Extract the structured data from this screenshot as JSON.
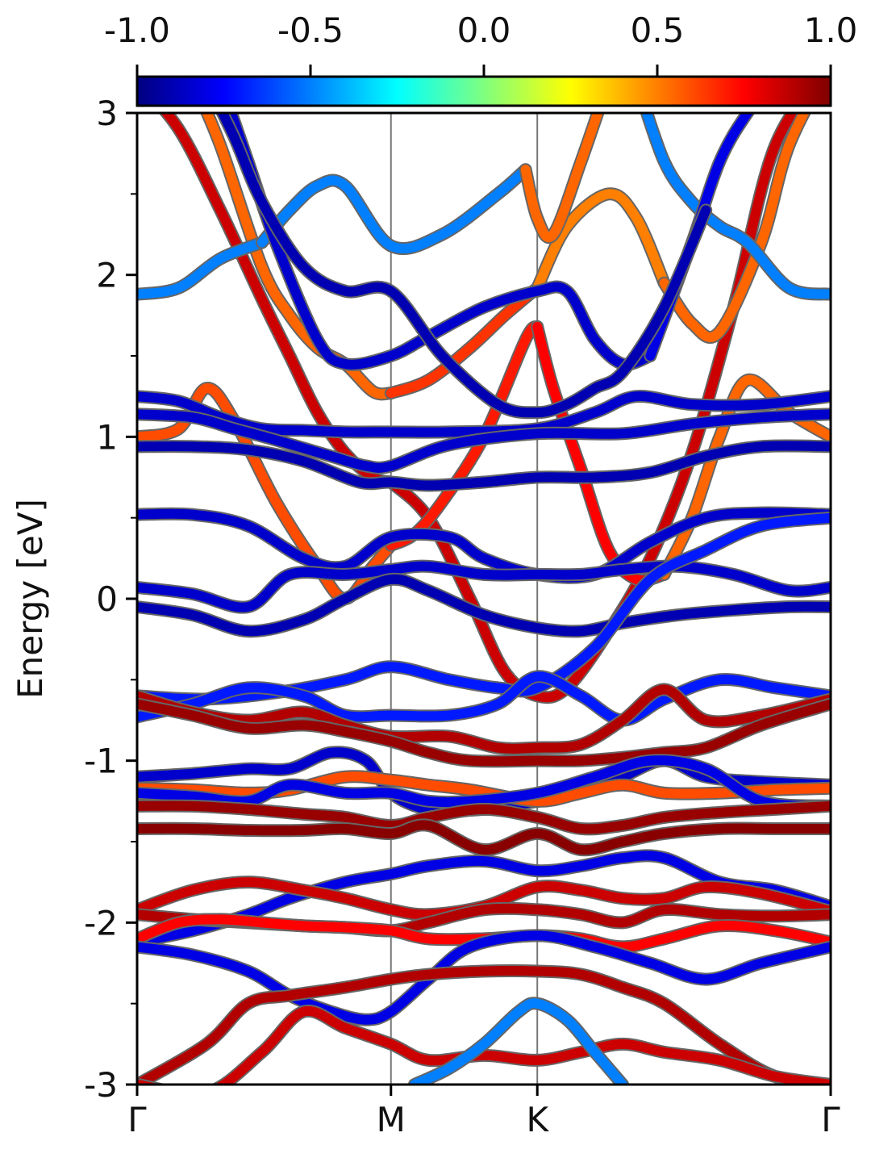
{
  "chart_data": {
    "type": "line",
    "title": "",
    "xlabel": "",
    "ylabel": "Energy [eV]",
    "ylim": [
      -3,
      3
    ],
    "xlim": [
      0,
      1
    ],
    "grid": false,
    "y_ticks": [
      3,
      2,
      1,
      0,
      -1,
      -2,
      -3
    ],
    "y_tick_labels": [
      "3",
      "2",
      "1",
      "0",
      "-1",
      "-2",
      "-3"
    ],
    "k_points": [
      {
        "label": "Γ",
        "x": 0.0
      },
      {
        "label": "M",
        "x": 0.366
      },
      {
        "label": "K",
        "x": 0.577
      },
      {
        "label": "Γ",
        "x": 1.0
      }
    ],
    "colorbar": {
      "colormap": "jet",
      "range": [
        -1.0,
        1.0
      ],
      "placement": "top",
      "tick_values": [
        -1.0,
        -0.5,
        0.0,
        0.5,
        1.0
      ],
      "tick_labels": [
        "-1.0",
        "-0.5",
        "0.0",
        "0.5",
        "1.0"
      ],
      "colors": [
        "#00007f",
        "#0000ff",
        "#007fff",
        "#00ffff",
        "#7fff7f",
        "#ffff00",
        "#ff7f00",
        "#ff0000",
        "#7f0000"
      ]
    },
    "series": [
      {
        "x": [
          0,
          0.06,
          0.12,
          0.18,
          0.22,
          0.26,
          0.3,
          0.34,
          0.366
        ],
        "y": [
          3.2,
          2.9,
          2.4,
          1.85,
          1.5,
          1.15,
          0.9,
          0.75,
          0.72
        ],
        "c": 0.85
      },
      {
        "x": [
          0.366,
          0.42,
          0.48,
          0.53,
          0.577,
          0.62,
          0.68,
          0.74,
          0.8,
          0.86,
          0.92,
          1.0
        ],
        "y": [
          0.72,
          0.5,
          0.0,
          -0.45,
          -0.6,
          -0.55,
          -0.2,
          0.25,
          0.9,
          1.8,
          2.8,
          3.3
        ],
        "c": 0.85
      },
      {
        "x": [
          0.08,
          0.12,
          0.18,
          0.22,
          0.26,
          0.3,
          0.34,
          0.366
        ],
        "y": [
          3.2,
          2.8,
          2.05,
          1.75,
          1.55,
          1.45,
          1.28,
          1.27
        ],
        "c": 0.55
      },
      {
        "x": [
          0.366,
          0.42,
          0.48,
          0.53,
          0.577
        ],
        "y": [
          1.27,
          1.35,
          1.55,
          1.75,
          1.92
        ],
        "c": 0.65
      },
      {
        "x": [
          0.577,
          0.62,
          0.68,
          0.72,
          0.76
        ],
        "y": [
          1.92,
          2.3,
          2.5,
          2.35,
          1.95
        ],
        "c": 0.5
      },
      {
        "x": [
          0.76,
          0.8,
          0.84,
          0.9,
          0.94,
          1.0
        ],
        "y": [
          1.95,
          1.7,
          1.65,
          2.2,
          2.8,
          3.3
        ],
        "c": 0.55
      },
      {
        "x": [
          0.0,
          0.06,
          0.1,
          0.14,
          0.2,
          0.26,
          0.3,
          0.34,
          0.366
        ],
        "y": [
          1.0,
          1.05,
          1.3,
          1.1,
          0.6,
          0.2,
          0.0,
          0.2,
          0.33
        ],
        "c": 0.6
      },
      {
        "x": [
          0.366,
          0.4,
          0.44,
          0.5,
          0.56,
          0.577
        ],
        "y": [
          0.33,
          0.4,
          0.6,
          1.0,
          1.6,
          1.68
        ],
        "c": 0.7
      },
      {
        "x": [
          0.577,
          0.6,
          0.64,
          0.68,
          0.72,
          0.76
        ],
        "y": [
          1.68,
          1.3,
          0.8,
          0.3,
          0.12,
          0.15
        ],
        "c": 0.75
      },
      {
        "x": [
          0.76,
          0.8,
          0.84,
          0.88,
          0.94,
          1.0
        ],
        "y": [
          0.15,
          0.5,
          1.0,
          1.35,
          1.15,
          1.0
        ],
        "c": 0.55
      },
      {
        "x": [
          0.0,
          0.06,
          0.12,
          0.18,
          0.24,
          0.3,
          0.366,
          0.45,
          0.577,
          0.66,
          0.72,
          0.8,
          0.9,
          1.0
        ],
        "y": [
          1.25,
          1.22,
          1.12,
          1.05,
          1.04,
          1.03,
          1.03,
          1.03,
          1.05,
          1.15,
          1.25,
          1.2,
          1.2,
          1.25
        ],
        "c": -0.85
      },
      {
        "x": [
          0.0,
          0.08,
          0.14,
          0.2,
          0.28,
          0.33,
          0.366,
          0.45,
          0.577,
          0.7,
          0.8,
          0.9,
          1.0
        ],
        "y": [
          1.14,
          1.12,
          1.05,
          0.98,
          0.88,
          0.82,
          0.82,
          0.95,
          1.02,
          1.02,
          1.08,
          1.12,
          1.14
        ],
        "c": -0.85
      },
      {
        "x": [
          0.0,
          0.08,
          0.16,
          0.24,
          0.32,
          0.366,
          0.42,
          0.5,
          0.577,
          0.66,
          0.74,
          0.82,
          0.9,
          1.0
        ],
        "y": [
          0.94,
          0.94,
          0.92,
          0.85,
          0.72,
          0.72,
          0.7,
          0.72,
          0.75,
          0.75,
          0.78,
          0.88,
          0.94,
          0.94
        ],
        "c": -0.9
      },
      {
        "x": [
          0.0,
          0.08,
          0.16,
          0.24,
          0.3,
          0.366,
          0.45,
          0.5,
          0.577,
          0.66,
          0.74,
          0.82,
          0.9,
          1.0
        ],
        "y": [
          0.52,
          0.52,
          0.45,
          0.25,
          0.2,
          0.38,
          0.38,
          0.25,
          0.15,
          0.15,
          0.35,
          0.5,
          0.53,
          0.52
        ],
        "c": -0.85
      },
      {
        "x": [
          0.0,
          0.08,
          0.16,
          0.22,
          0.3,
          0.366,
          0.42,
          0.5,
          0.577,
          0.64,
          0.7,
          0.78,
          0.86,
          0.94,
          1.0
        ],
        "y": [
          0.07,
          0.03,
          -0.05,
          0.15,
          0.15,
          0.18,
          0.2,
          0.15,
          0.15,
          0.15,
          0.18,
          0.2,
          0.15,
          0.05,
          0.07
        ],
        "c": -0.85
      },
      {
        "x": [
          0.0,
          0.08,
          0.16,
          0.24,
          0.3,
          0.366,
          0.42,
          0.5,
          0.577,
          0.64,
          0.7,
          0.78,
          0.86,
          0.94,
          1.0
        ],
        "y": [
          -0.05,
          -0.1,
          -0.2,
          -0.13,
          0.0,
          0.12,
          0.05,
          -0.1,
          -0.18,
          -0.2,
          -0.15,
          -0.1,
          -0.07,
          -0.05,
          -0.05
        ],
        "c": -0.9
      },
      {
        "x": [
          0.0,
          0.1,
          0.2,
          0.3,
          0.366,
          0.45,
          0.52,
          0.577,
          0.66,
          0.74,
          0.82,
          0.9,
          1.0
        ],
        "y": [
          -0.6,
          -0.62,
          -0.58,
          -0.5,
          -0.42,
          -0.5,
          -0.55,
          -0.55,
          -0.3,
          0.12,
          0.3,
          0.45,
          0.5
        ],
        "c": -0.7
      },
      {
        "x": [
          0.0,
          0.08,
          0.16,
          0.24,
          0.3,
          0.366,
          0.45,
          0.52,
          0.577,
          0.64,
          0.7,
          0.76,
          0.84,
          0.92,
          1.0
        ],
        "y": [
          -0.73,
          -0.65,
          -0.55,
          -0.6,
          -0.72,
          -0.72,
          -0.72,
          -0.65,
          -0.48,
          -0.6,
          -0.75,
          -0.62,
          -0.5,
          -0.55,
          -0.6
        ],
        "c": -0.7
      },
      {
        "x": [
          0.0,
          0.08,
          0.16,
          0.24,
          0.3,
          0.366,
          0.45,
          0.52,
          0.577,
          0.64,
          0.7,
          0.76,
          0.82,
          0.9,
          1.0
        ],
        "y": [
          -0.6,
          -0.7,
          -0.75,
          -0.7,
          -0.78,
          -0.85,
          -0.85,
          -0.92,
          -0.92,
          -0.9,
          -0.75,
          -0.56,
          -0.75,
          -0.72,
          -0.62
        ],
        "c": 0.9
      },
      {
        "x": [
          0.0,
          0.08,
          0.16,
          0.24,
          0.3,
          0.366,
          0.42,
          0.48,
          0.577,
          0.64,
          0.7,
          0.76,
          0.82,
          0.9,
          1.0
        ],
        "y": [
          -0.65,
          -0.72,
          -0.8,
          -0.78,
          -0.82,
          -0.88,
          -0.95,
          -1.0,
          -1.0,
          -1.0,
          -0.98,
          -0.95,
          -0.92,
          -0.78,
          -0.65
        ],
        "c": 0.95
      },
      {
        "x": [
          0.0,
          0.08,
          0.16,
          0.22,
          0.28,
          0.33,
          0.366,
          0.42,
          0.5,
          0.577,
          0.64,
          0.7,
          0.76,
          0.82,
          0.9,
          1.0
        ],
        "y": [
          -1.1,
          -1.08,
          -1.05,
          -1.05,
          -0.95,
          -1.0,
          -1.2,
          -1.3,
          -1.3,
          -1.25,
          -1.2,
          -1.1,
          -1.0,
          -1.1,
          -1.13,
          -1.15
        ],
        "c": -0.85
      },
      {
        "x": [
          0.0,
          0.08,
          0.16,
          0.22,
          0.3,
          0.366,
          0.42,
          0.48,
          0.577,
          0.64,
          0.7,
          0.76,
          0.84,
          0.92,
          1.0
        ],
        "y": [
          -1.17,
          -1.18,
          -1.2,
          -1.18,
          -1.1,
          -1.12,
          -1.15,
          -1.18,
          -1.25,
          -1.2,
          -1.15,
          -1.2,
          -1.2,
          -1.18,
          -1.17
        ],
        "c": 0.6
      },
      {
        "x": [
          0.0,
          0.08,
          0.16,
          0.22,
          0.3,
          0.366,
          0.42,
          0.48,
          0.577,
          0.66,
          0.74,
          0.82,
          0.9,
          1.0
        ],
        "y": [
          -1.2,
          -1.22,
          -1.25,
          -1.15,
          -1.2,
          -1.2,
          -1.25,
          -1.25,
          -1.2,
          -1.1,
          -1.0,
          -1.05,
          -1.25,
          -1.28
        ],
        "c": -0.8
      },
      {
        "x": [
          0.0,
          0.08,
          0.16,
          0.24,
          0.3,
          0.366,
          0.42,
          0.5,
          0.577,
          0.64,
          0.7,
          0.76,
          0.84,
          0.92,
          1.0
        ],
        "y": [
          -1.28,
          -1.28,
          -1.3,
          -1.33,
          -1.35,
          -1.4,
          -1.35,
          -1.3,
          -1.35,
          -1.42,
          -1.4,
          -1.35,
          -1.32,
          -1.3,
          -1.28
        ],
        "c": 0.95
      },
      {
        "x": [
          0.0,
          0.08,
          0.16,
          0.24,
          0.3,
          0.366,
          0.42,
          0.5,
          0.577,
          0.64,
          0.7,
          0.76,
          0.84,
          0.92,
          1.0
        ],
        "y": [
          -1.42,
          -1.42,
          -1.43,
          -1.43,
          -1.42,
          -1.45,
          -1.4,
          -1.55,
          -1.45,
          -1.55,
          -1.5,
          -1.45,
          -1.42,
          -1.42,
          -1.42
        ],
        "c": 0.98
      },
      {
        "x": [
          0.0,
          0.08,
          0.16,
          0.22,
          0.3,
          0.366,
          0.42,
          0.5,
          0.577,
          0.64,
          0.7,
          0.76,
          0.84,
          0.92,
          1.0
        ],
        "y": [
          -2.12,
          -2.05,
          -1.95,
          -1.85,
          -1.75,
          -1.7,
          -1.65,
          -1.62,
          -1.68,
          -1.65,
          -1.6,
          -1.6,
          -1.75,
          -1.8,
          -1.9
        ],
        "c": -0.8
      },
      {
        "x": [
          0.0,
          0.08,
          0.16,
          0.24,
          0.3,
          0.366,
          0.42,
          0.5,
          0.577,
          0.64,
          0.7,
          0.76,
          0.82,
          0.9,
          1.0
        ],
        "y": [
          -1.92,
          -1.8,
          -1.75,
          -1.8,
          -1.85,
          -1.92,
          -1.95,
          -1.9,
          -1.78,
          -1.8,
          -1.85,
          -1.85,
          -1.78,
          -1.82,
          -1.93
        ],
        "c": 0.85
      },
      {
        "x": [
          0.0,
          0.08,
          0.16,
          0.24,
          0.3,
          0.366,
          0.42,
          0.5,
          0.577,
          0.64,
          0.7,
          0.76,
          0.84,
          0.92,
          1.0
        ],
        "y": [
          -1.95,
          -1.98,
          -2.0,
          -2.02,
          -2.03,
          -2.05,
          -2.0,
          -1.92,
          -1.92,
          -1.95,
          -2.0,
          -1.92,
          -1.95,
          -1.96,
          -1.95
        ],
        "c": 0.9
      },
      {
        "x": [
          0.0,
          0.06,
          0.12,
          0.18,
          0.24,
          0.3,
          0.366,
          0.42,
          0.5,
          0.577,
          0.64,
          0.7,
          0.76,
          0.84,
          0.92,
          1.0
        ],
        "y": [
          -2.1,
          -2.0,
          -1.98,
          -2.0,
          -2.02,
          -2.03,
          -2.05,
          -2.1,
          -2.1,
          -2.08,
          -2.1,
          -2.15,
          -2.1,
          -2.02,
          -2.05,
          -2.12
        ],
        "c": 0.75
      },
      {
        "x": [
          0.0,
          0.08,
          0.16,
          0.22,
          0.28,
          0.33,
          0.366,
          0.42,
          0.48,
          0.577,
          0.66,
          0.74,
          0.82,
          0.9,
          1.0
        ],
        "y": [
          -2.15,
          -2.2,
          -2.3,
          -2.45,
          -2.55,
          -2.6,
          -2.55,
          -2.35,
          -2.15,
          -2.08,
          -2.15,
          -2.25,
          -2.35,
          -2.25,
          -2.15
        ],
        "c": -0.8
      },
      {
        "x": [
          0.0,
          0.1,
          0.16,
          0.22,
          0.3,
          0.366,
          0.42,
          0.5,
          0.577,
          0.64,
          0.7,
          0.76,
          0.84,
          0.92,
          1.0
        ],
        "y": [
          -3.0,
          -2.75,
          -2.5,
          -2.45,
          -2.4,
          -2.35,
          -2.32,
          -2.3,
          -2.3,
          -2.32,
          -2.4,
          -2.5,
          -2.75,
          -2.95,
          -3.0
        ],
        "c": 0.9
      },
      {
        "x": [
          0.0,
          0.1,
          0.18,
          0.24,
          0.3,
          0.366,
          0.42,
          0.5,
          0.577,
          0.64,
          0.7,
          0.76,
          0.84,
          0.92,
          1.0
        ],
        "y": [
          -3.0,
          -3.05,
          -2.8,
          -2.55,
          -2.65,
          -2.75,
          -2.85,
          -2.82,
          -2.85,
          -2.8,
          -2.75,
          -2.8,
          -2.85,
          -2.95,
          -3.0
        ],
        "c": 0.85
      },
      {
        "x": [
          0.4,
          0.45,
          0.5,
          0.55,
          0.577,
          0.62,
          0.66,
          0.7
        ],
        "y": [
          -3.0,
          -2.9,
          -2.75,
          -2.55,
          -2.5,
          -2.6,
          -2.8,
          -3.0
        ],
        "c": -0.5
      },
      {
        "x": [
          0.0,
          0.06,
          0.12,
          0.18
        ],
        "y": [
          1.88,
          1.92,
          2.1,
          2.2
        ],
        "c": -0.5
      },
      {
        "x": [
          0.18,
          0.22,
          0.26,
          0.3,
          0.366,
          0.44,
          0.52,
          0.56
        ],
        "y": [
          2.2,
          2.4,
          2.55,
          2.55,
          2.18,
          2.25,
          2.5,
          2.65
        ],
        "c": -0.5
      },
      {
        "x": [
          0.56,
          0.577,
          0.6,
          0.64,
          0.68
        ],
        "y": [
          2.65,
          2.35,
          2.25,
          2.7,
          3.2
        ],
        "c": 0.55
      },
      {
        "x": [
          0.72,
          0.76,
          0.8,
          0.84,
          0.88,
          0.94,
          1.0
        ],
        "y": [
          3.2,
          2.7,
          2.45,
          2.3,
          2.2,
          1.92,
          1.88
        ],
        "c": -0.5
      },
      {
        "x": [
          0.12,
          0.16,
          0.2,
          0.26,
          0.3,
          0.366,
          0.42,
          0.5,
          0.577,
          0.62,
          0.66,
          0.7,
          0.74
        ],
        "y": [
          3.2,
          2.7,
          2.2,
          1.6,
          1.45,
          1.5,
          1.62,
          1.8,
          1.9,
          1.9,
          1.6,
          1.45,
          1.5
        ],
        "c": -0.85
      },
      {
        "x": [
          0.74,
          0.8,
          0.84,
          0.88,
          0.92,
          0.96
        ],
        "y": [
          1.5,
          2.2,
          2.7,
          3.0,
          3.2,
          3.3
        ],
        "c": -0.8
      },
      {
        "x": [
          0.1,
          0.14,
          0.18,
          0.24,
          0.3,
          0.366,
          0.44,
          0.52,
          0.577,
          0.62,
          0.66,
          0.7,
          0.76,
          0.82
        ],
        "y": [
          3.2,
          2.85,
          2.45,
          2.05,
          1.9,
          1.9,
          1.5,
          1.2,
          1.15,
          1.2,
          1.3,
          1.4,
          1.8,
          2.4
        ],
        "c": -0.9
      }
    ]
  }
}
